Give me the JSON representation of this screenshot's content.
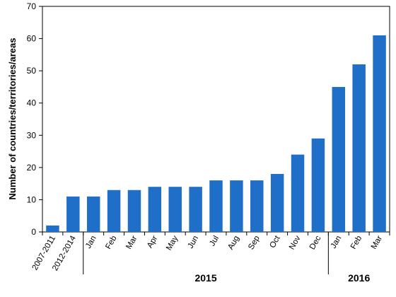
{
  "chart_data": {
    "type": "bar",
    "title": "",
    "xlabel": "",
    "ylabel": "Number of countries/territories/areas",
    "ylim": [
      0,
      70
    ],
    "yticks": [
      0,
      10,
      20,
      30,
      40,
      50,
      60,
      70
    ],
    "grid": false,
    "bar_color": "#1f6fc8",
    "categories": [
      "2007-2011",
      "2012-2014",
      "Jan",
      "Feb",
      "Mar",
      "Apr",
      "May",
      "Jun",
      "Jul",
      "Aug",
      "Sep",
      "Oct",
      "Nov",
      "Dec",
      "Jan",
      "Feb",
      "Mar"
    ],
    "values": [
      2,
      11,
      11,
      13,
      13,
      14,
      14,
      14,
      16,
      16,
      16,
      18,
      24,
      29,
      45,
      52,
      61
    ],
    "groups": [
      {
        "label": "2015",
        "first": 2,
        "last": 13
      },
      {
        "label": "2016",
        "first": 14,
        "last": 16
      }
    ]
  }
}
